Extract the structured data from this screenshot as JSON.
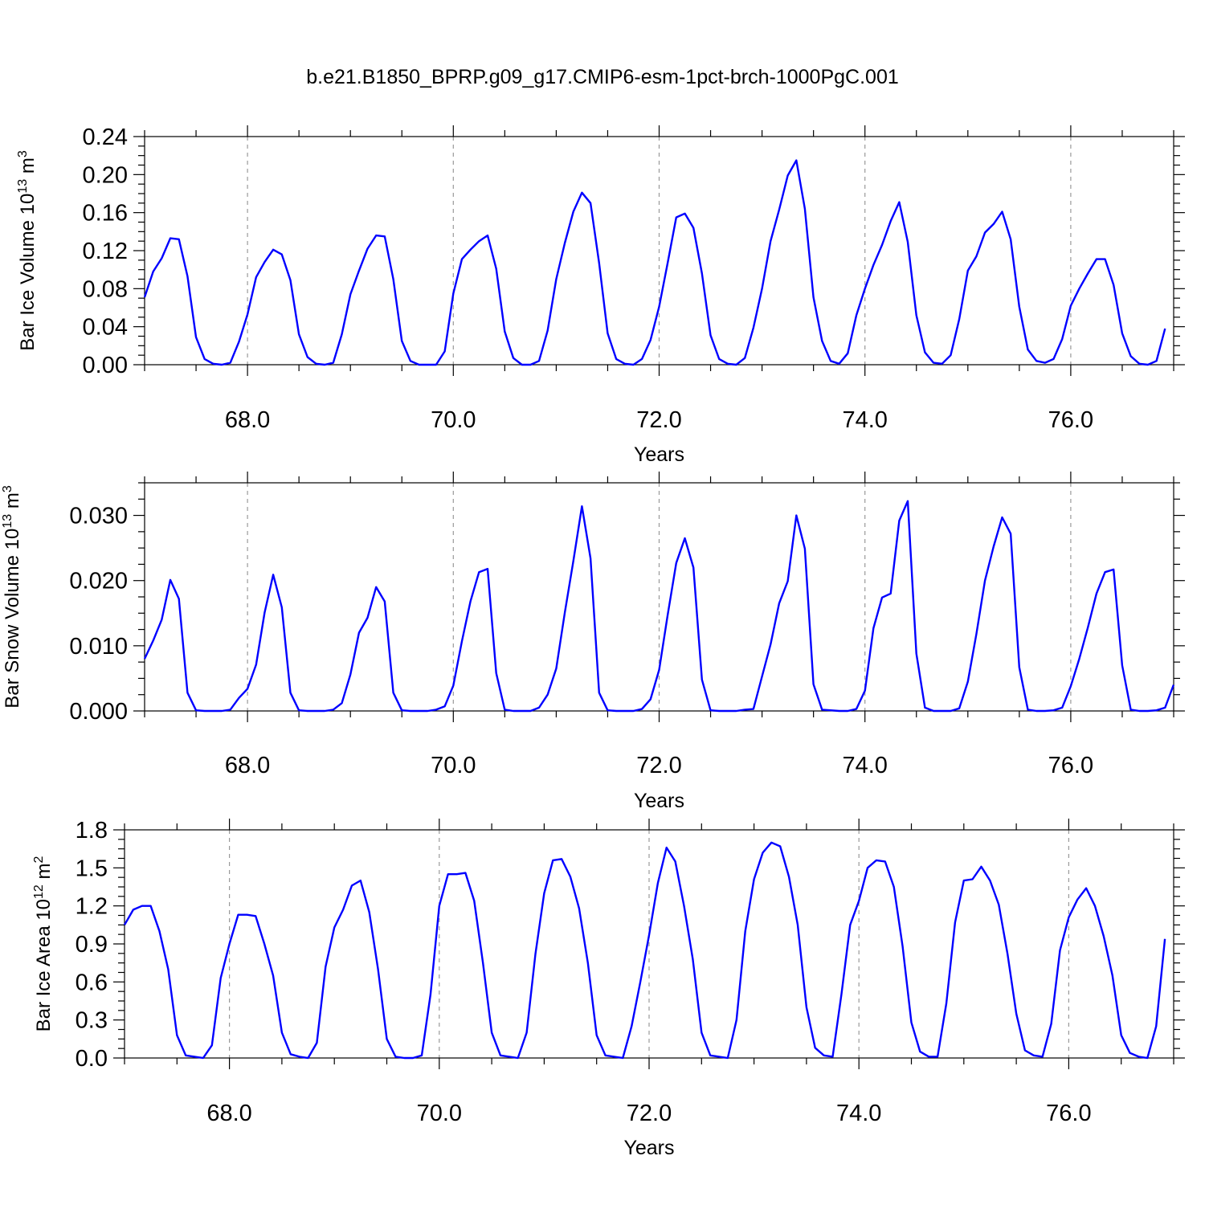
{
  "title": "b.e21.B1850_BPRP.g09_g17.CMIP6-esm-1pct-brch-1000PgC.001",
  "colors": {
    "line": "#0000ff",
    "axis": "#000000",
    "grid": "#999999"
  },
  "chart_data": [
    {
      "type": "line",
      "ylabel": "Bar Ice Volume",
      "unit_base": "10",
      "unit_exp": "13",
      "unit_symbol": "m",
      "unit_power": "3",
      "xlabel": "Years",
      "xlim": [
        67.0,
        77.0
      ],
      "ylim": [
        0.0,
        0.24
      ],
      "x_ticks": [
        "68.0",
        "70.0",
        "72.0",
        "74.0",
        "76.0"
      ],
      "y_ticks": [
        "0.00",
        "0.04",
        "0.08",
        "0.12",
        "0.16",
        "0.20",
        "0.24"
      ],
      "vertical_grid_at": [
        68,
        70,
        72,
        74,
        76
      ],
      "x_start": 67.0,
      "x_step": 0.08333,
      "series": [
        {
          "values": [
            0.071,
            0.098,
            0.112,
            0.133,
            0.132,
            0.093,
            0.029,
            0.006,
            0.001,
            0.0,
            0.002,
            0.024,
            0.053,
            0.092,
            0.108,
            0.121,
            0.116,
            0.089,
            0.032,
            0.008,
            0.001,
            0.0,
            0.002,
            0.032,
            0.074,
            0.099,
            0.122,
            0.136,
            0.135,
            0.09,
            0.025,
            0.004,
            0.0,
            0.0,
            0.0,
            0.014,
            0.075,
            0.111,
            0.121,
            0.13,
            0.136,
            0.101,
            0.035,
            0.007,
            0.0,
            0.0,
            0.004,
            0.036,
            0.09,
            0.128,
            0.161,
            0.181,
            0.17,
            0.107,
            0.033,
            0.006,
            0.001,
            0.0,
            0.006,
            0.026,
            0.061,
            0.107,
            0.155,
            0.159,
            0.144,
            0.096,
            0.031,
            0.006,
            0.001,
            0.0,
            0.007,
            0.039,
            0.08,
            0.13,
            0.163,
            0.199,
            0.215,
            0.164,
            0.071,
            0.025,
            0.004,
            0.001,
            0.012,
            0.052,
            0.08,
            0.105,
            0.126,
            0.151,
            0.171,
            0.129,
            0.052,
            0.013,
            0.002,
            0.001,
            0.01,
            0.048,
            0.099,
            0.114,
            0.139,
            0.148,
            0.161,
            0.132,
            0.061,
            0.016,
            0.004,
            0.002,
            0.006,
            0.027,
            0.062,
            0.08,
            0.096,
            0.111,
            0.111,
            0.084,
            0.033,
            0.009,
            0.001,
            0.0,
            0.004,
            0.038
          ]
        }
      ]
    },
    {
      "type": "line",
      "ylabel": "Bar Snow Volume",
      "unit_base": "10",
      "unit_exp": "13",
      "unit_symbol": "m",
      "unit_power": "3",
      "xlabel": "Years",
      "xlim": [
        67.0,
        77.0
      ],
      "ylim": [
        0.0,
        0.035
      ],
      "x_ticks": [
        "68.0",
        "70.0",
        "72.0",
        "74.0",
        "76.0"
      ],
      "y_ticks": [
        "0.000",
        "0.010",
        "0.020",
        "0.030"
      ],
      "vertical_grid_at": [
        68,
        70,
        72,
        74,
        76
      ],
      "x_start": 67.0,
      "x_step": 0.08333,
      "series": [
        {
          "values": [
            0.008,
            0.0108,
            0.014,
            0.0201,
            0.0172,
            0.0028,
            0.0001,
            0.0,
            0.0,
            0.0,
            0.0002,
            0.002,
            0.0034,
            0.0071,
            0.0151,
            0.0209,
            0.0159,
            0.0028,
            0.0001,
            0.0,
            0.0,
            0.0,
            0.0002,
            0.0012,
            0.0056,
            0.012,
            0.0143,
            0.019,
            0.0168,
            0.0028,
            0.0001,
            0.0,
            0.0,
            0.0,
            0.0002,
            0.0007,
            0.0039,
            0.0107,
            0.0168,
            0.0213,
            0.0218,
            0.0058,
            0.0002,
            0.0,
            0.0,
            0.0,
            0.0005,
            0.0025,
            0.0065,
            0.0151,
            0.023,
            0.0314,
            0.0234,
            0.0028,
            0.0001,
            0.0,
            0.0,
            0.0,
            0.0003,
            0.0018,
            0.0063,
            0.0147,
            0.0227,
            0.0265,
            0.022,
            0.0048,
            0.0001,
            0.0,
            0.0,
            0.0,
            0.0002,
            0.0003,
            0.0053,
            0.0102,
            0.0165,
            0.0199,
            0.03,
            0.0249,
            0.0041,
            0.0002,
            0.0001,
            0.0,
            0.0,
            0.0003,
            0.0031,
            0.0127,
            0.0174,
            0.018,
            0.0292,
            0.0322,
            0.0088,
            0.0005,
            0.0,
            0.0,
            0.0,
            0.0004,
            0.0045,
            0.0118,
            0.02,
            0.0252,
            0.0297,
            0.0272,
            0.0067,
            0.0002,
            0.0,
            0.0,
            0.0001,
            0.0005,
            0.0038,
            0.008,
            0.0128,
            0.018,
            0.0213,
            0.0217,
            0.007,
            0.0002,
            0.0,
            0.0,
            0.0001,
            0.0005,
            0.004
          ]
        }
      ]
    },
    {
      "type": "line",
      "ylabel": "Bar Ice Area",
      "unit_base": "10",
      "unit_exp": "12",
      "unit_symbol": "m",
      "unit_power": "2",
      "xlabel": "Years",
      "xlim": [
        67.0,
        77.0
      ],
      "ylim": [
        0.0,
        1.8
      ],
      "x_ticks": [
        "68.0",
        "70.0",
        "72.0",
        "74.0",
        "76.0"
      ],
      "y_ticks": [
        "0.0",
        "0.3",
        "0.6",
        "0.9",
        "1.2",
        "1.5",
        "1.8"
      ],
      "vertical_grid_at": [
        68,
        70,
        72,
        74,
        76
      ],
      "x_start": 67.0,
      "x_step": 0.08333,
      "series": [
        {
          "values": [
            1.05,
            1.17,
            1.2,
            1.2,
            1.0,
            0.7,
            0.18,
            0.02,
            0.01,
            0.0,
            0.1,
            0.63,
            0.9,
            1.13,
            1.13,
            1.12,
            0.9,
            0.65,
            0.2,
            0.03,
            0.01,
            0.0,
            0.12,
            0.72,
            1.03,
            1.17,
            1.36,
            1.4,
            1.15,
            0.7,
            0.15,
            0.01,
            0.0,
            0.0,
            0.02,
            0.5,
            1.2,
            1.45,
            1.45,
            1.46,
            1.24,
            0.75,
            0.2,
            0.02,
            0.01,
            0.0,
            0.2,
            0.82,
            1.3,
            1.56,
            1.57,
            1.43,
            1.18,
            0.75,
            0.18,
            0.02,
            0.01,
            0.0,
            0.25,
            0.6,
            0.97,
            1.38,
            1.66,
            1.55,
            1.2,
            0.78,
            0.2,
            0.02,
            0.01,
            0.0,
            0.3,
            1.0,
            1.41,
            1.62,
            1.7,
            1.67,
            1.43,
            1.05,
            0.4,
            0.08,
            0.02,
            0.01,
            0.5,
            1.05,
            1.24,
            1.5,
            1.56,
            1.55,
            1.35,
            0.88,
            0.28,
            0.05,
            0.01,
            0.01,
            0.43,
            1.07,
            1.4,
            1.41,
            1.51,
            1.4,
            1.21,
            0.82,
            0.35,
            0.06,
            0.02,
            0.01,
            0.27,
            0.85,
            1.11,
            1.25,
            1.34,
            1.2,
            0.96,
            0.65,
            0.18,
            0.04,
            0.01,
            0.0,
            0.25,
            0.94
          ]
        }
      ]
    }
  ]
}
